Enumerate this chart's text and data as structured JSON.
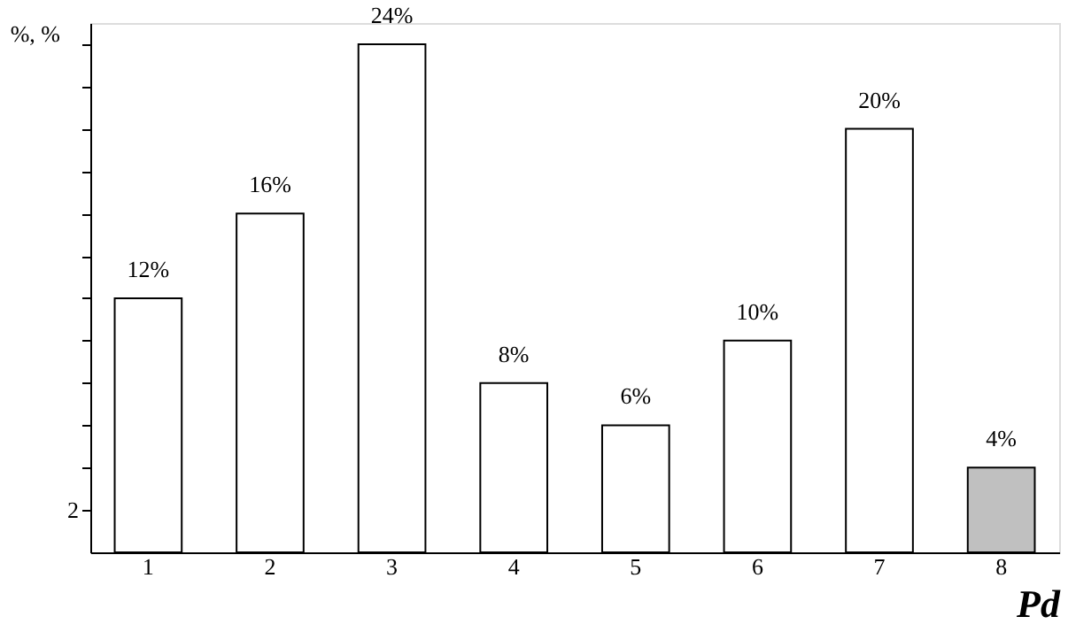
{
  "chart_data": {
    "type": "bar",
    "xlabel": "Pd",
    "ylabel": "%, %",
    "categories": [
      "1",
      "2",
      "3",
      "4",
      "5",
      "6",
      "7",
      "8"
    ],
    "values": [
      12,
      16,
      24,
      8,
      6,
      10,
      20,
      4
    ],
    "value_labels": [
      "12%",
      "16%",
      "24%",
      "8%",
      "6%",
      "10%",
      "20%",
      "4%"
    ],
    "colors": [
      "#ffffff",
      "#ffffff",
      "#ffffff",
      "#ffffff",
      "#ffffff",
      "#ffffff",
      "#ffffff",
      "#c0c0c0"
    ],
    "ylim": [
      0,
      25
    ],
    "yticks": [
      {
        "value": 2,
        "label": "2"
      },
      {
        "value": 4,
        "label": null
      },
      {
        "value": 6,
        "label": null
      },
      {
        "value": 8,
        "label": null
      },
      {
        "value": 10,
        "label": null
      },
      {
        "value": 12,
        "label": null
      },
      {
        "value": 14,
        "label": null
      },
      {
        "value": 16,
        "label": null
      },
      {
        "value": 18,
        "label": null
      },
      {
        "value": 20,
        "label": null
      },
      {
        "value": 22,
        "label": null
      },
      {
        "value": 24,
        "label": null
      }
    ],
    "grid": false
  }
}
